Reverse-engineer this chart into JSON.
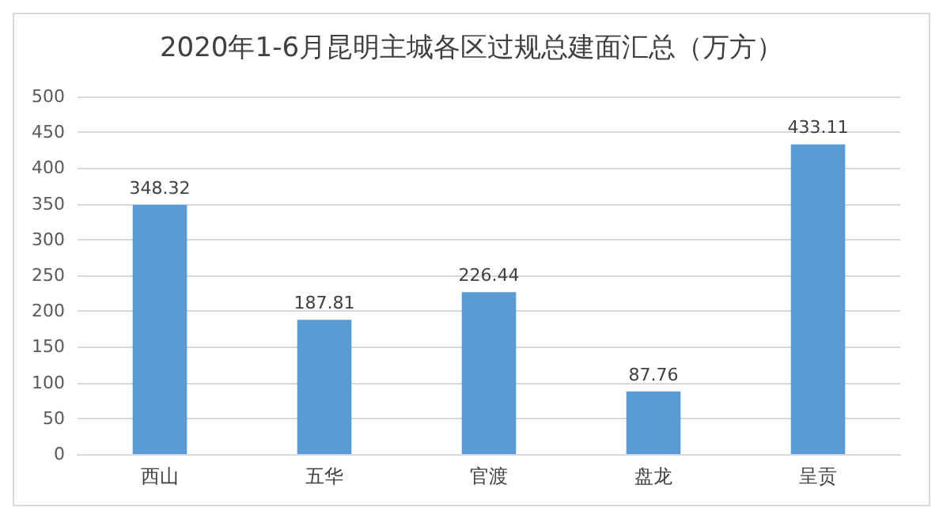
{
  "chart_data": {
    "type": "bar",
    "title": "2020年1-6月昆明主城各区过规总建面汇总（万方）",
    "categories": [
      "西山",
      "五华",
      "官渡",
      "盘龙",
      "呈贡"
    ],
    "values": [
      348.32,
      187.81,
      226.44,
      87.76,
      433.11
    ],
    "color": "#5b9bd5",
    "ylim": [
      0,
      500
    ],
    "yticks": [
      0,
      50,
      100,
      150,
      200,
      250,
      300,
      350,
      400,
      450,
      500
    ],
    "grid": "y",
    "data_labels": true
  }
}
